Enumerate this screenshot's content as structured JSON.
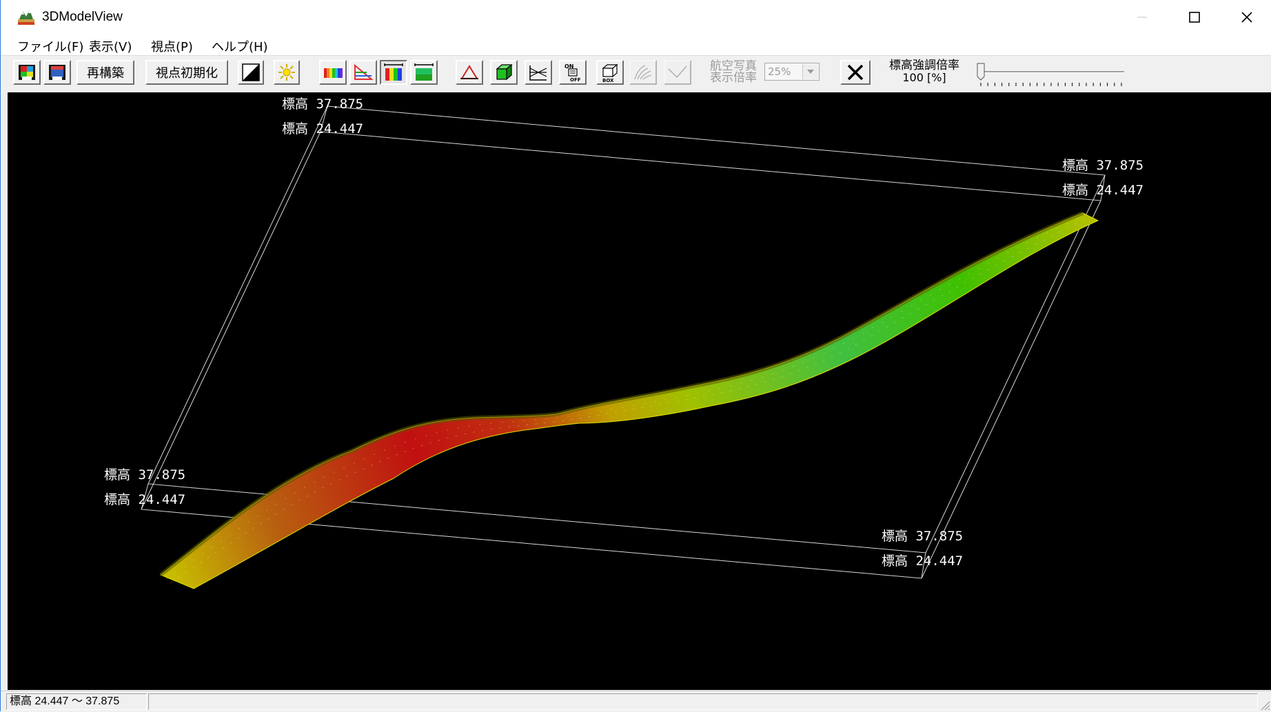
{
  "window": {
    "title": "3DModelView",
    "minimize_icon": "minimize-icon",
    "maximize_icon": "maximize-icon",
    "close_icon": "close-icon"
  },
  "menu": [
    {
      "label": "ファイル(F)"
    },
    {
      "label": "表示(V)"
    },
    {
      "label": "視点(P)"
    },
    {
      "label": "ヘルプ(H)"
    }
  ],
  "toolbar": {
    "rebuild_label": "再構築",
    "reset_view_label": "視点初期化",
    "aerial_photo_label_1": "航空写真",
    "aerial_photo_label_2": "表示倍率",
    "aerial_zoom_value": "25%",
    "elevation_scale_label_1": "標高強調倍率",
    "elevation_scale_label_2": "100 [%]",
    "elevation_scale_value": 0,
    "icons": [
      "save-color-icon",
      "save-gradient-icon",
      "contrast-icon",
      "light-icon",
      "color-bar-icon",
      "triangle-legend-icon",
      "color-range-icon",
      "green-range-icon",
      "triangle-mesh-icon",
      "solid-box-icon",
      "section-icon",
      "onoff-icon",
      "box-icon",
      "contour-icon",
      "line-icon",
      "close-x-icon"
    ]
  },
  "viewport": {
    "elevation_labels": [
      "標高 37.875",
      "標高 24.447",
      "標高 37.875",
      "標高 24.447",
      "標高 37.875",
      "標高 24.447",
      "標高 37.875",
      "標高 24.447"
    ],
    "elevation_min": 24.447,
    "elevation_max": 37.875
  },
  "status": {
    "range_text": "標高 24.447 ～ 37.875"
  }
}
